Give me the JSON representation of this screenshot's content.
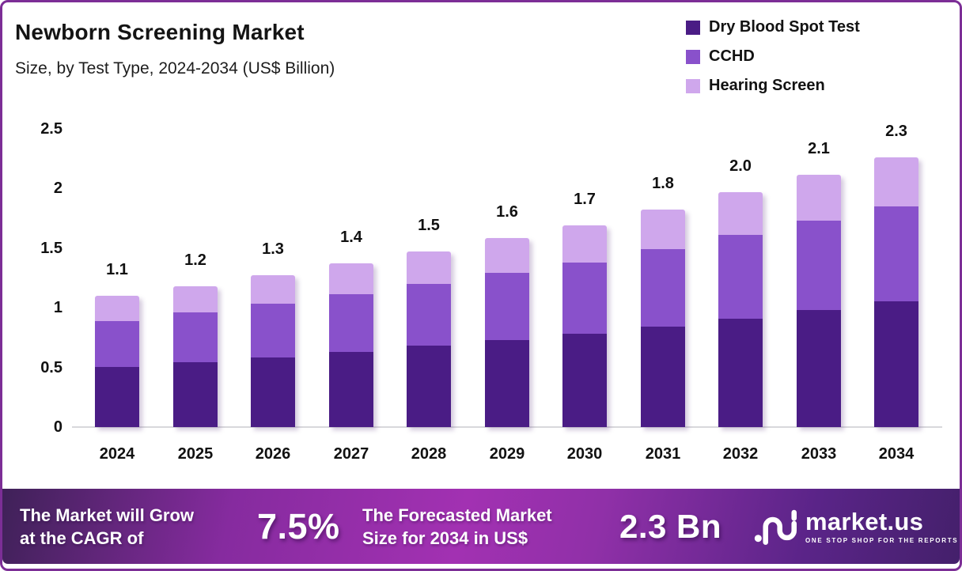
{
  "chart_data": {
    "type": "bar",
    "stacked": true,
    "title": "Newborn Screening Market",
    "subtitle": "Size, by Test Type, 2024-2034 (US$ Billion)",
    "unit": "US$ Billion",
    "categories": [
      "2024",
      "2025",
      "2026",
      "2027",
      "2028",
      "2029",
      "2030",
      "2031",
      "2032",
      "2033",
      "2034"
    ],
    "series": [
      {
        "name": "Dry Blood Spot Test",
        "color": "#4A1C85",
        "values": [
          0.5,
          0.54,
          0.58,
          0.63,
          0.68,
          0.73,
          0.78,
          0.84,
          0.91,
          0.98,
          1.05
        ]
      },
      {
        "name": "CCHD",
        "color": "#8951CB",
        "values": [
          0.39,
          0.42,
          0.45,
          0.48,
          0.52,
          0.56,
          0.6,
          0.65,
          0.7,
          0.75,
          0.8
        ]
      },
      {
        "name": "Hearing Screen",
        "color": "#CFA7EC",
        "values": [
          0.21,
          0.22,
          0.24,
          0.26,
          0.27,
          0.29,
          0.31,
          0.33,
          0.36,
          0.38,
          0.41
        ]
      }
    ],
    "total_labels": [
      "1.1",
      "1.2",
      "1.3",
      "1.4",
      "1.5",
      "1.6",
      "1.7",
      "1.8",
      "2.0",
      "2.1",
      "2.3"
    ],
    "yticks": [
      "0",
      "0.5",
      "1",
      "1.5",
      "2",
      "2.5"
    ],
    "ylim": [
      0,
      2.5
    ],
    "grid": false,
    "legend_position": "top-right"
  },
  "footer": {
    "cagr_label": "The Market will Grow\nat the CAGR of",
    "cagr_value": "7.5%",
    "forecast_label": "The Forecasted Market\nSize for 2034 in US$",
    "forecast_value": "2.3 Bn",
    "logo_text": "market.us",
    "logo_tagline": "ONE STOP SHOP FOR THE REPORTS"
  },
  "colors": {
    "frame_border": "#7C2E96",
    "axis_line": "#D8D8DC",
    "banner_gradient": [
      "#3F2158",
      "#A231B2",
      "#44206B"
    ],
    "text": "#111111"
  }
}
